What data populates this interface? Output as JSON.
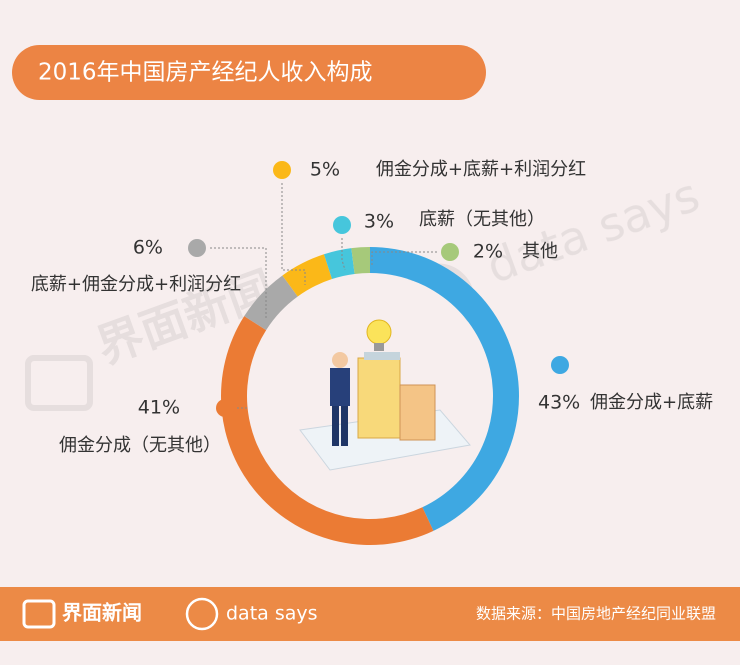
{
  "chart_data": {
    "type": "donut",
    "title": "2016年中国房产经纪人收入构成",
    "categories": [
      "佣金分成+底薪",
      "佣金分成（无其他）",
      "底薪+佣金分成+利润分红",
      "佣金分成+底薪+利润分红",
      "底薪（无其他）",
      "其他"
    ],
    "values": [
      43,
      41,
      6,
      5,
      3,
      2
    ],
    "value_labels": [
      "43%",
      "41%",
      "6%",
      "5%",
      "3%",
      "2%"
    ],
    "colors": [
      "#3ea8e2",
      "#eb7b34",
      "#a9a9a9",
      "#fbb818",
      "#46c6dc",
      "#a6c97a"
    ]
  },
  "watermark": {
    "brand": "界面新闻",
    "tagline": "data says"
  },
  "footer": {
    "brand": "界面新闻",
    "tagline": "data says",
    "source": "数据来源：中国房地产经纪同业联盟"
  }
}
